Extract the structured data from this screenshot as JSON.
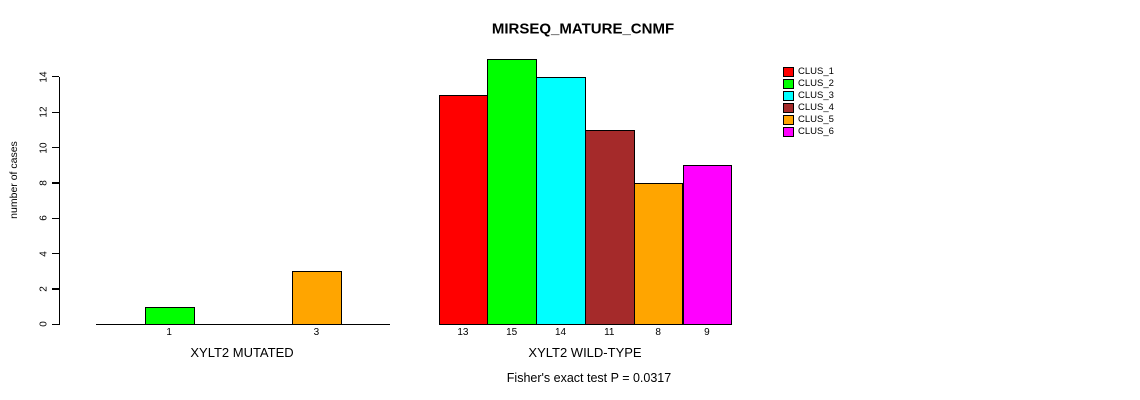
{
  "chart_data": {
    "type": "bar",
    "title": "MIRSEQ_MATURE_CNMF",
    "ylabel": "number of cases",
    "ylim": [
      0,
      15
    ],
    "yticks": [
      0,
      2,
      4,
      6,
      8,
      10,
      12,
      14
    ],
    "grid": false,
    "legend_position": "right",
    "bar_border_color": "#000000",
    "clusters": [
      {
        "name": "CLUS_1",
        "color": "#FF0000"
      },
      {
        "name": "CLUS_2",
        "color": "#00FF00"
      },
      {
        "name": "CLUS_3",
        "color": "#00FFFF"
      },
      {
        "name": "CLUS_4",
        "color": "#A52A2A"
      },
      {
        "name": "CLUS_5",
        "color": "#FFA500"
      },
      {
        "name": "CLUS_6",
        "color": "#FF00FF"
      }
    ],
    "groups": [
      {
        "label": "XYLT2 MUTATED",
        "values": [
          0,
          1,
          0,
          0,
          3,
          0
        ]
      },
      {
        "label": "XYLT2 WILD-TYPE",
        "values": [
          13,
          15,
          14,
          11,
          8,
          9
        ]
      }
    ],
    "annotation": "Fisher's exact test P = 0.0317"
  }
}
